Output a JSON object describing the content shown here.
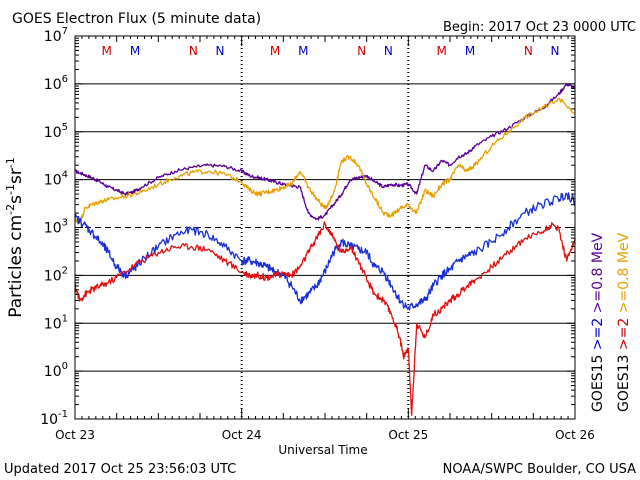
{
  "header": {
    "title": "GOES Electron Flux (5 minute data)",
    "begin": "Begin: 2017 Oct 23 0000 UTC"
  },
  "footer": {
    "updated": "Updated 2017 Oct 25 23:56:03 UTC",
    "credit": "NOAA/SWPC Boulder, CO USA"
  },
  "colors": {
    "goes15_08": "#5a0096",
    "goes13_08": "#e8a000",
    "goes15_2": "#1a2fd6",
    "goes13_2": "#e01010",
    "marker_m": "#cc0000",
    "marker_n": "#0000cc"
  },
  "chart_data": {
    "type": "line",
    "title": "GOES Electron Flux (5 minute data)",
    "xlabel": "Universal Time",
    "ylabel": "Particles cm⁻²s⁻¹sr⁻¹",
    "ylabel_parts": {
      "base": "Particles cm",
      "e1": "-2",
      "s": "s",
      "e2": "-1",
      "sr": "sr",
      "e3": "-1"
    },
    "y_scale": "log",
    "ylim": [
      0.1,
      10000000
    ],
    "xlim_days": [
      0,
      3
    ],
    "y_ticks": [
      {
        "value": 0.1,
        "base": "10",
        "exp": "-1"
      },
      {
        "value": 1,
        "base": "10",
        "exp": "0"
      },
      {
        "value": 10,
        "base": "10",
        "exp": "1"
      },
      {
        "value": 100,
        "base": "10",
        "exp": "2"
      },
      {
        "value": 1000,
        "base": "10",
        "exp": "3"
      },
      {
        "value": 10000,
        "base": "10",
        "exp": "4"
      },
      {
        "value": 100000,
        "base": "10",
        "exp": "5"
      },
      {
        "value": 1000000,
        "base": "10",
        "exp": "6"
      },
      {
        "value": 10000000,
        "base": "10",
        "exp": "7"
      }
    ],
    "x_ticks": [
      "Oct 23",
      "Oct 24",
      "Oct 25",
      "Oct 26"
    ],
    "threshold_line": 1000,
    "markers": [
      {
        "label": "M",
        "day": 0.19,
        "color": "red"
      },
      {
        "label": "M",
        "day": 0.36,
        "color": "blue"
      },
      {
        "label": "N",
        "day": 0.71,
        "color": "red"
      },
      {
        "label": "N",
        "day": 0.87,
        "color": "blue"
      },
      {
        "label": "M",
        "day": 1.2,
        "color": "red"
      },
      {
        "label": "M",
        "day": 1.37,
        "color": "blue"
      },
      {
        "label": "N",
        "day": 1.72,
        "color": "red"
      },
      {
        "label": "N",
        "day": 1.88,
        "color": "blue"
      },
      {
        "label": "M",
        "day": 2.2,
        "color": "red"
      },
      {
        "label": "M",
        "day": 2.37,
        "color": "blue"
      },
      {
        "label": "N",
        "day": 2.72,
        "color": "red"
      },
      {
        "label": "N",
        "day": 2.88,
        "color": "blue"
      }
    ],
    "legend_goes15": [
      {
        "text": "GOES15",
        "color": "black"
      },
      {
        "text": ">=2",
        "color": "blue"
      },
      {
        "text": ">=0.8 MeV",
        "color": "purple"
      }
    ],
    "legend_goes13": [
      {
        "text": "GOES13",
        "color": "black"
      },
      {
        "text": ">=2",
        "color": "red"
      },
      {
        "text": ">=0.8 MeV",
        "color": "orange"
      }
    ],
    "series": [
      {
        "name": "GOES15 >=0.8 MeV",
        "x": [
          0,
          0.05,
          0.1,
          0.15,
          0.2,
          0.25,
          0.3,
          0.35,
          0.4,
          0.5,
          0.6,
          0.7,
          0.8,
          0.9,
          1.0,
          1.05,
          1.1,
          1.15,
          1.2,
          1.25,
          1.3,
          1.35,
          1.4,
          1.45,
          1.5,
          1.55,
          1.6,
          1.65,
          1.7,
          1.75,
          1.8,
          1.85,
          1.9,
          1.95,
          2.0,
          2.05,
          2.1,
          2.15,
          2.2,
          2.25,
          2.3,
          2.35,
          2.4,
          2.5,
          2.6,
          2.7,
          2.8,
          2.9,
          2.95,
          3.0
        ],
        "y": [
          15000,
          13000,
          11000,
          9000,
          7000,
          6000,
          5000,
          5500,
          7000,
          11000,
          15000,
          18000,
          20000,
          19000,
          15000,
          12000,
          11000,
          10000,
          9000,
          8000,
          7500,
          7000,
          2000,
          1500,
          1800,
          3000,
          5000,
          10000,
          11000,
          12000,
          9000,
          7000,
          8000,
          7500,
          8000,
          5000,
          20000,
          15000,
          25000,
          20000,
          30000,
          35000,
          50000,
          80000,
          120000,
          200000,
          300000,
          600000,
          1000000,
          800000
        ]
      },
      {
        "name": "GOES13 >=0.8 MeV",
        "x": [
          0,
          0.03,
          0.06,
          0.1,
          0.15,
          0.2,
          0.3,
          0.4,
          0.5,
          0.6,
          0.7,
          0.8,
          0.9,
          1.0,
          1.05,
          1.1,
          1.15,
          1.2,
          1.25,
          1.3,
          1.35,
          1.4,
          1.45,
          1.5,
          1.55,
          1.6,
          1.65,
          1.7,
          1.75,
          1.8,
          1.85,
          1.9,
          1.95,
          2.0,
          2.05,
          2.1,
          2.15,
          2.2,
          2.25,
          2.3,
          2.35,
          2.4,
          2.5,
          2.6,
          2.7,
          2.8,
          2.9,
          3.0
        ],
        "y": [
          1500,
          1300,
          2500,
          3000,
          3500,
          3800,
          4500,
          5500,
          8000,
          11000,
          14000,
          15000,
          13000,
          9000,
          6000,
          5000,
          5500,
          6000,
          7000,
          8000,
          15000,
          7000,
          4000,
          2500,
          5000,
          25000,
          30000,
          20000,
          8000,
          4000,
          2000,
          1800,
          2500,
          3000,
          2000,
          6000,
          4500,
          8000,
          10000,
          20000,
          15000,
          20000,
          50000,
          100000,
          200000,
          300000,
          500000,
          250000
        ]
      },
      {
        "name": "GOES15 >=2",
        "x": [
          0,
          0.05,
          0.1,
          0.15,
          0.2,
          0.25,
          0.3,
          0.35,
          0.4,
          0.5,
          0.6,
          0.7,
          0.8,
          0.9,
          1.0,
          1.05,
          1.1,
          1.15,
          1.2,
          1.25,
          1.3,
          1.35,
          1.4,
          1.45,
          1.5,
          1.55,
          1.6,
          1.65,
          1.7,
          1.75,
          1.8,
          1.85,
          1.9,
          1.95,
          2.0,
          2.05,
          2.1,
          2.15,
          2.2,
          2.25,
          2.3,
          2.35,
          2.4,
          2.5,
          2.6,
          2.7,
          2.8,
          2.9,
          2.95,
          3.0
        ],
        "y": [
          1600,
          1200,
          800,
          500,
          300,
          150,
          100,
          130,
          200,
          400,
          700,
          900,
          700,
          400,
          200,
          200,
          180,
          150,
          120,
          100,
          60,
          30,
          40,
          60,
          120,
          300,
          500,
          400,
          350,
          300,
          150,
          120,
          60,
          30,
          20,
          25,
          30,
          60,
          100,
          130,
          200,
          250,
          300,
          500,
          1000,
          2000,
          3000,
          4000,
          5000,
          3500
        ]
      },
      {
        "name": "GOES13 >=2",
        "x": [
          0,
          0.03,
          0.06,
          0.1,
          0.15,
          0.2,
          0.3,
          0.4,
          0.5,
          0.6,
          0.7,
          0.8,
          0.9,
          1.0,
          1.05,
          1.1,
          1.15,
          1.2,
          1.25,
          1.3,
          1.35,
          1.4,
          1.45,
          1.5,
          1.55,
          1.6,
          1.65,
          1.7,
          1.75,
          1.8,
          1.85,
          1.9,
          1.95,
          1.97,
          2.0,
          2.02,
          2.05,
          2.1,
          2.15,
          2.2,
          2.25,
          2.3,
          2.35,
          2.4,
          2.5,
          2.6,
          2.7,
          2.8,
          2.85,
          2.9,
          2.95,
          3.0
        ],
        "y": [
          60,
          30,
          40,
          50,
          60,
          70,
          120,
          200,
          300,
          400,
          400,
          350,
          200,
          120,
          100,
          100,
          90,
          100,
          110,
          100,
          150,
          300,
          600,
          1200,
          600,
          300,
          400,
          200,
          80,
          40,
          30,
          15,
          5,
          2,
          3,
          0.12,
          10,
          5,
          15,
          20,
          30,
          40,
          60,
          80,
          150,
          300,
          600,
          800,
          1100,
          1000,
          200,
          600
        ]
      }
    ]
  }
}
